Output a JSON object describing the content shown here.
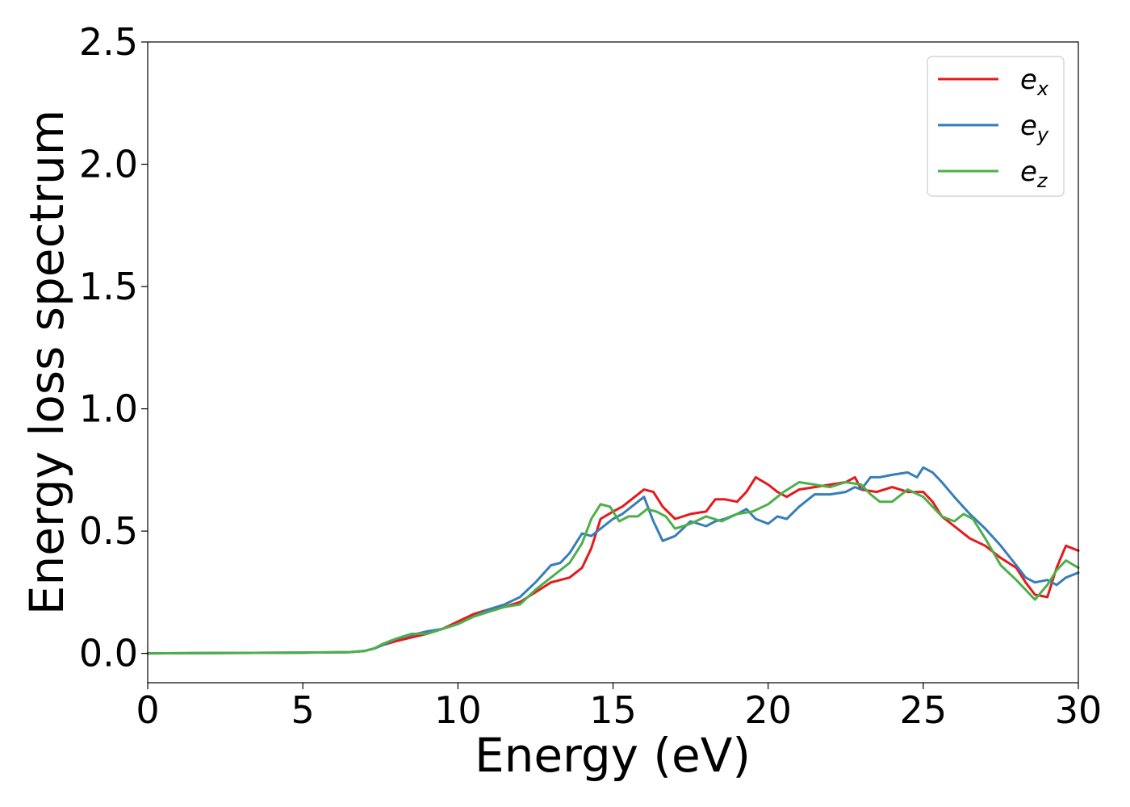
{
  "chart_data": {
    "type": "line",
    "title": "",
    "xlabel": "Energy (eV)",
    "ylabel": "Energy loss spectrum",
    "xlim": [
      0,
      30
    ],
    "ylim": [
      -0.12,
      2.5
    ],
    "xticks": [
      0,
      5,
      10,
      15,
      20,
      25,
      30
    ],
    "xtick_labels": [
      "0",
      "5",
      "10",
      "15",
      "20",
      "25",
      "30"
    ],
    "yticks": [
      0.0,
      0.5,
      1.0,
      1.5,
      2.0,
      2.5
    ],
    "ytick_labels": [
      "0.0",
      "0.5",
      "1.0",
      "1.5",
      "2.0",
      "2.5"
    ],
    "grid": false,
    "legend_position": "top-right",
    "legend": [
      {
        "base": "e",
        "sub": "x"
      },
      {
        "base": "e",
        "sub": "y"
      },
      {
        "base": "e",
        "sub": "z"
      }
    ],
    "series": [
      {
        "name": "e_x",
        "color": "#e41a1c",
        "x": [
          0,
          5,
          6.5,
          7,
          7.3,
          7.6,
          8,
          8.5,
          9,
          9.5,
          10,
          10.5,
          11,
          11.5,
          12,
          12.5,
          13,
          13.3,
          13.6,
          14,
          14.3,
          14.6,
          15,
          15.3,
          15.6,
          16,
          16.3,
          16.6,
          17,
          17.5,
          18,
          18.3,
          18.6,
          19,
          19.3,
          19.6,
          20,
          20.3,
          20.6,
          21,
          21.5,
          22,
          22.5,
          22.8,
          23,
          23.5,
          24,
          24.5,
          25,
          25.3,
          25.6,
          26,
          26.5,
          27,
          27.5,
          28,
          28.3,
          28.6,
          29,
          29.3,
          29.6,
          30
        ],
        "y": [
          0.0,
          0.003,
          0.005,
          0.01,
          0.02,
          0.035,
          0.05,
          0.065,
          0.08,
          0.1,
          0.13,
          0.16,
          0.18,
          0.19,
          0.21,
          0.25,
          0.29,
          0.3,
          0.31,
          0.35,
          0.43,
          0.55,
          0.58,
          0.6,
          0.63,
          0.67,
          0.66,
          0.6,
          0.55,
          0.57,
          0.58,
          0.63,
          0.63,
          0.62,
          0.66,
          0.72,
          0.69,
          0.66,
          0.64,
          0.67,
          0.68,
          0.69,
          0.7,
          0.72,
          0.67,
          0.66,
          0.68,
          0.66,
          0.66,
          0.62,
          0.56,
          0.52,
          0.47,
          0.44,
          0.39,
          0.35,
          0.29,
          0.24,
          0.23,
          0.35,
          0.44,
          0.42
        ]
      },
      {
        "name": "e_y",
        "color": "#377eb8",
        "x": [
          0,
          5,
          6.5,
          7,
          7.3,
          7.6,
          8,
          8.5,
          9,
          9.5,
          10,
          10.5,
          11,
          11.5,
          12,
          12.5,
          13,
          13.3,
          13.6,
          14,
          14.3,
          14.6,
          15,
          15.3,
          15.6,
          16,
          16.3,
          16.6,
          17,
          17.5,
          18,
          18.3,
          18.6,
          19,
          19.3,
          19.6,
          20,
          20.3,
          20.6,
          21,
          21.5,
          22,
          22.5,
          22.8,
          23,
          23.3,
          23.6,
          24,
          24.5,
          24.8,
          25,
          25.3,
          25.6,
          26,
          26.5,
          27,
          27.5,
          28,
          28.3,
          28.6,
          29,
          29.3,
          29.6,
          30
        ],
        "y": [
          0.0,
          0.003,
          0.005,
          0.01,
          0.02,
          0.035,
          0.06,
          0.075,
          0.09,
          0.1,
          0.12,
          0.15,
          0.18,
          0.2,
          0.23,
          0.29,
          0.36,
          0.37,
          0.41,
          0.49,
          0.48,
          0.51,
          0.55,
          0.57,
          0.6,
          0.64,
          0.54,
          0.46,
          0.48,
          0.54,
          0.52,
          0.54,
          0.55,
          0.57,
          0.59,
          0.55,
          0.53,
          0.56,
          0.55,
          0.6,
          0.65,
          0.65,
          0.66,
          0.68,
          0.67,
          0.72,
          0.72,
          0.73,
          0.74,
          0.72,
          0.76,
          0.74,
          0.7,
          0.64,
          0.57,
          0.51,
          0.44,
          0.36,
          0.31,
          0.29,
          0.3,
          0.28,
          0.31,
          0.33
        ]
      },
      {
        "name": "e_z",
        "color": "#4daf4a",
        "x": [
          0,
          5,
          6.5,
          7,
          7.3,
          7.6,
          8,
          8.5,
          9,
          9.5,
          10,
          10.5,
          11,
          11.5,
          12,
          12.5,
          13,
          13.3,
          13.6,
          14,
          14.3,
          14.6,
          14.9,
          15.2,
          15.5,
          15.8,
          16.1,
          16.4,
          16.7,
          17,
          17.5,
          18,
          18.5,
          19,
          19.5,
          20,
          20.5,
          21,
          21.5,
          22,
          22.5,
          23,
          23.3,
          23.6,
          24,
          24.5,
          25,
          25.3,
          25.6,
          26,
          26.3,
          26.6,
          27,
          27.5,
          28,
          28.3,
          28.6,
          29,
          29.3,
          29.6,
          30
        ],
        "y": [
          0.0,
          0.003,
          0.005,
          0.01,
          0.02,
          0.04,
          0.06,
          0.08,
          0.08,
          0.1,
          0.12,
          0.15,
          0.17,
          0.19,
          0.2,
          0.26,
          0.31,
          0.34,
          0.37,
          0.45,
          0.55,
          0.61,
          0.6,
          0.54,
          0.56,
          0.56,
          0.59,
          0.58,
          0.56,
          0.51,
          0.53,
          0.56,
          0.54,
          0.57,
          0.58,
          0.61,
          0.66,
          0.7,
          0.69,
          0.68,
          0.7,
          0.69,
          0.65,
          0.62,
          0.62,
          0.67,
          0.64,
          0.6,
          0.56,
          0.54,
          0.57,
          0.55,
          0.47,
          0.36,
          0.3,
          0.26,
          0.22,
          0.28,
          0.34,
          0.38,
          0.35
        ]
      }
    ]
  }
}
